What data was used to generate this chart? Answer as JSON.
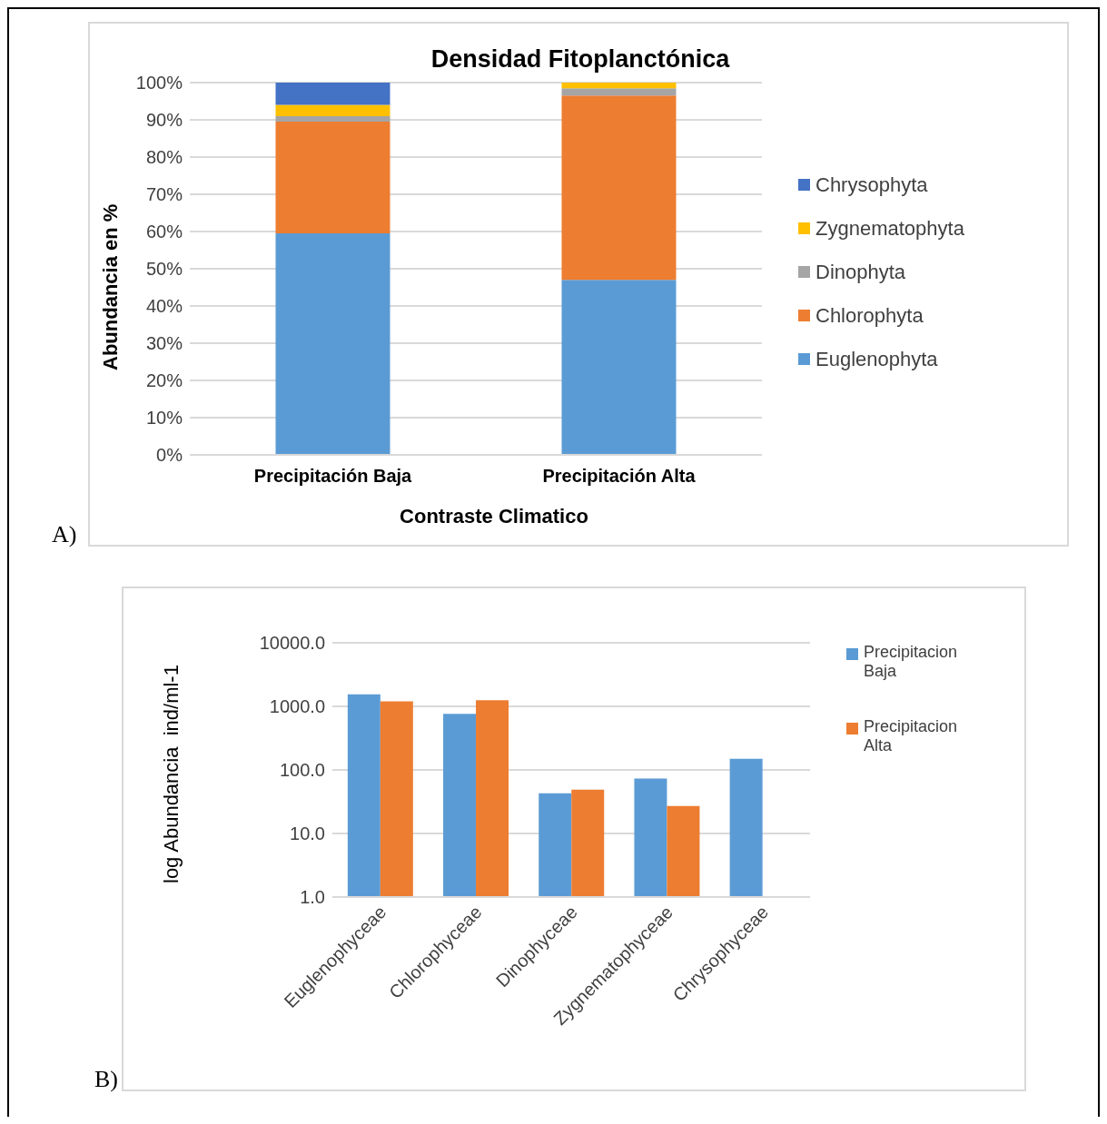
{
  "chart_data": [
    {
      "type": "bar",
      "title": "Densidad Fitoplanctónica",
      "xlabel": "Contraste Climatico",
      "ylabel": "Abundancia en %",
      "annotations": [
        "A)"
      ],
      "stacked": true,
      "categories": [
        "Precipitación Baja",
        "Precipitación Alta"
      ],
      "series": [
        {
          "name": "Euglenophyta",
          "color": "#5b9bd5",
          "values": [
            59.5,
            47
          ]
        },
        {
          "name": "Chlorophyta",
          "color": "#ed7d31",
          "values": [
            30,
            49.5
          ]
        },
        {
          "name": "Dinophyta",
          "color": "#a5a5a5",
          "values": [
            1.5,
            2
          ]
        },
        {
          "name": "Zygnematophyta",
          "color": "#ffc000",
          "values": [
            3,
            1.5
          ]
        },
        {
          "name": "Chrysophyta",
          "color": "#4472c4",
          "values": [
            6,
            0
          ]
        }
      ],
      "ylim": [
        0,
        100
      ],
      "yticks": [
        {
          "value": 0,
          "label": "0%"
        },
        {
          "value": 10,
          "label": "10%"
        },
        {
          "value": 20,
          "label": "20%"
        },
        {
          "value": 30,
          "label": "30%"
        },
        {
          "value": 40,
          "label": "40%"
        },
        {
          "value": 50,
          "label": "50%"
        },
        {
          "value": 60,
          "label": "60%"
        },
        {
          "value": 70,
          "label": "70%"
        },
        {
          "value": 80,
          "label": "80%"
        },
        {
          "value": 90,
          "label": "90%"
        },
        {
          "value": 100,
          "label": "100%"
        }
      ],
      "grid": "y",
      "legend": "right"
    },
    {
      "type": "bar",
      "ylabel": "log Abundancia  ind/ml-1",
      "annotations": [
        "B)"
      ],
      "log": true,
      "categories": [
        "Euglenophyceae",
        "Chlorophyceae",
        "Dinophyceae",
        "Zygnematophyceae",
        "Chrysophyceae"
      ],
      "series": [
        {
          "name": "Precipitacion Baja",
          "color": "#5b9bd5",
          "values": [
            1550,
            760,
            43,
            73,
            150
          ]
        },
        {
          "name": "Precipitacion Alta",
          "color": "#ed7d31",
          "values": [
            1200,
            1250,
            49,
            27,
            1
          ]
        }
      ],
      "ylim": [
        1,
        10000
      ],
      "yticks": [
        {
          "value": 1,
          "label": "1.0"
        },
        {
          "value": 10,
          "label": "10.0"
        },
        {
          "value": 100,
          "label": "100.0"
        },
        {
          "value": 1000,
          "label": "1000.0"
        },
        {
          "value": 10000,
          "label": "10000.0"
        }
      ],
      "grid": "y",
      "legend": "top right"
    }
  ]
}
